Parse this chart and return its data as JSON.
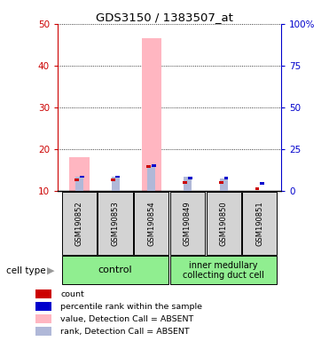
{
  "title": "GDS3150 / 1383507_at",
  "samples": [
    "GSM190852",
    "GSM190853",
    "GSM190854",
    "GSM190849",
    "GSM190850",
    "GSM190851"
  ],
  "value_absent": [
    18.0,
    0,
    46.5,
    0,
    0,
    0
  ],
  "rank_absent": [
    13.5,
    13.5,
    16.0,
    13.5,
    13.0,
    0
  ],
  "count_absent": [
    12.3,
    12.3,
    15.5,
    11.8,
    11.8,
    10.3
  ],
  "pct_rank_absent": [
    13.1,
    13.1,
    15.8,
    12.8,
    12.8,
    11.5
  ],
  "ylim": [
    10,
    50
  ],
  "y2lim": [
    0,
    100
  ],
  "yticks": [
    10,
    20,
    30,
    40,
    50
  ],
  "y2ticks": [
    0,
    25,
    50,
    75,
    100
  ],
  "y2ticklabels": [
    "0",
    "25",
    "50",
    "75",
    "100%"
  ],
  "left_axis_color": "#cc0000",
  "right_axis_color": "#0000cc",
  "color_value_absent": "#ffb6c1",
  "color_rank_absent": "#b0b8d8",
  "color_count": "#cc0000",
  "color_pct_rank": "#0000cc",
  "sample_area_color": "#d3d3d3",
  "group_color": "#90ee90",
  "group1_label": "control",
  "group2_label": "inner medullary\ncollecting duct cell",
  "legend_items": [
    [
      "#cc0000",
      "count"
    ],
    [
      "#0000cc",
      "percentile rank within the sample"
    ],
    [
      "#ffb6c1",
      "value, Detection Call = ABSENT"
    ],
    [
      "#b0b8d8",
      "rank, Detection Call = ABSENT"
    ]
  ]
}
